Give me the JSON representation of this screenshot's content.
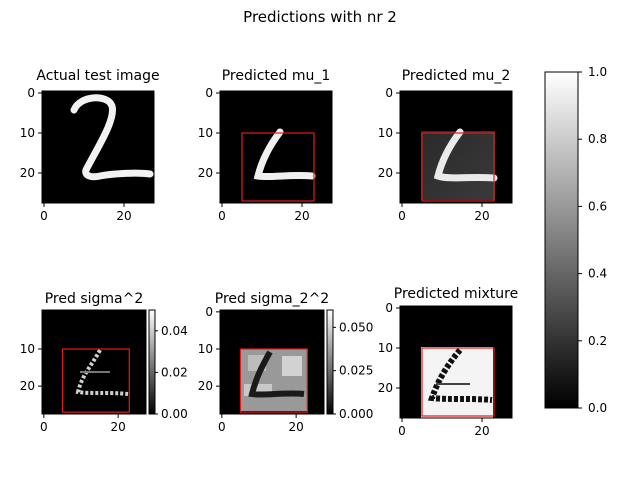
{
  "figure": {
    "title": "Predictions with nr 2"
  },
  "chart_data": [
    {
      "type": "heatmap",
      "title": "Actual test image",
      "x_ticks": [
        0,
        20
      ],
      "y_ticks": [
        0,
        10,
        20
      ],
      "image_size": 28,
      "cmap": "gray",
      "box": null,
      "colorbar": null
    },
    {
      "type": "heatmap",
      "title": "Predicted mu_1",
      "x_ticks": [
        0,
        20
      ],
      "y_ticks": [
        0,
        10,
        20
      ],
      "image_size": 28,
      "cmap": "gray",
      "box": {
        "x0": 5,
        "x1": 23,
        "y0": 10,
        "y1": 27,
        "color": "#e41a1c"
      },
      "colorbar": null
    },
    {
      "type": "heatmap",
      "title": "Predicted mu_2",
      "x_ticks": [
        0,
        20
      ],
      "y_ticks": [
        0,
        10,
        20
      ],
      "image_size": 28,
      "cmap": "gray",
      "box": {
        "x0": 5,
        "x1": 23,
        "y0": 10,
        "y1": 27,
        "color": "#e41a1c"
      },
      "colorbar": null
    },
    {
      "type": "heatmap",
      "title": "Pred sigma^2",
      "x_ticks": [
        0,
        20
      ],
      "y_ticks": [
        10,
        20
      ],
      "image_size": 28,
      "cmap": "gray",
      "box": {
        "x0": 5,
        "x1": 23,
        "y0": 10,
        "y1": 27,
        "color": "#e41a1c"
      },
      "colorbar": {
        "range": [
          0,
          0.05
        ],
        "ticks": [
          "0.00",
          "0.02",
          "0.04"
        ]
      }
    },
    {
      "type": "heatmap",
      "title": "Pred sigma_2^2",
      "x_ticks": [
        0,
        20
      ],
      "y_ticks": [
        0,
        10,
        20
      ],
      "image_size": 28,
      "cmap": "gray",
      "box": {
        "x0": 5,
        "x1": 23,
        "y0": 10,
        "y1": 27,
        "color": "#e41a1c"
      },
      "colorbar": {
        "range": [
          0,
          0.06
        ],
        "ticks": [
          "0.000",
          "0.025",
          "0.050"
        ]
      }
    },
    {
      "type": "heatmap",
      "title": "Predicted mixture",
      "x_ticks": [
        0,
        20
      ],
      "y_ticks": [
        0,
        10,
        20
      ],
      "image_size": 28,
      "cmap": "gray",
      "box": {
        "x0": 5,
        "x1": 23,
        "y0": 10,
        "y1": 27,
        "color": "#e41a1c"
      },
      "colorbar": null
    }
  ],
  "colorbar_main": {
    "range": [
      0,
      1
    ],
    "ticks": [
      "0.0",
      "0.2",
      "0.4",
      "0.6",
      "0.8",
      "1.0"
    ],
    "cmap": "gray"
  }
}
